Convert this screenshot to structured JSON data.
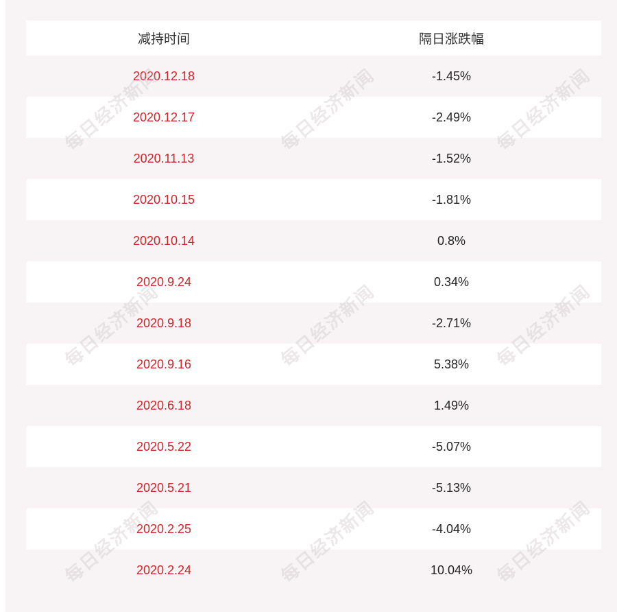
{
  "table": {
    "headers": {
      "date": "减持时间",
      "change": "隔日涨跌幅"
    },
    "rows": [
      {
        "date": "2020.12.18",
        "change": "-1.45%"
      },
      {
        "date": "2020.12.17",
        "change": "-2.49%"
      },
      {
        "date": "2020.11.13",
        "change": "-1.52%"
      },
      {
        "date": "2020.10.15",
        "change": "-1.81%"
      },
      {
        "date": "2020.10.14",
        "change": "0.8%"
      },
      {
        "date": "2020.9.24",
        "change": "0.34%"
      },
      {
        "date": "2020.9.18",
        "change": "-2.71%"
      },
      {
        "date": "2020.9.16",
        "change": "5.38%"
      },
      {
        "date": "2020.6.18",
        "change": "1.49%"
      },
      {
        "date": "2020.5.22",
        "change": "-5.07%"
      },
      {
        "date": "2020.5.21",
        "change": "-5.13%"
      },
      {
        "date": "2020.2.25",
        "change": "-4.04%"
      },
      {
        "date": "2020.2.24",
        "change": "10.04%"
      }
    ]
  },
  "watermark": {
    "text": "每日经济新闻"
  },
  "colors": {
    "date_text": "#d0242b",
    "value_text": "#222222",
    "tint_row": "#f8f4f6"
  }
}
